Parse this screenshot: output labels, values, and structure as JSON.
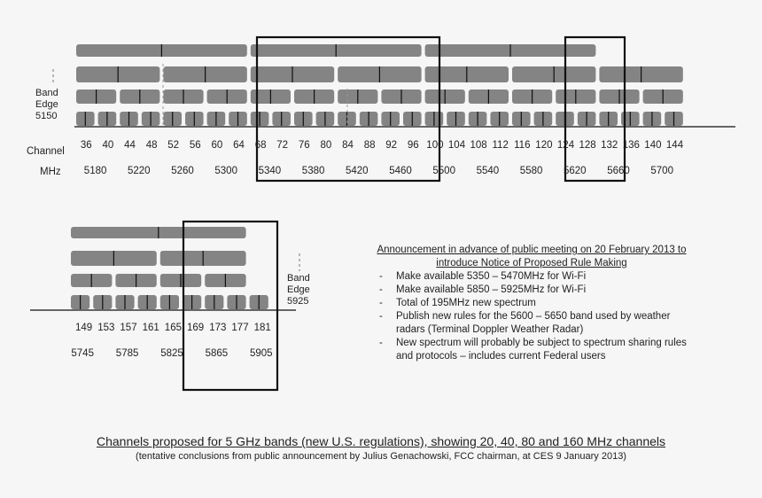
{
  "upper": {
    "band_edge_label": [
      "Band",
      "Edge",
      "5150"
    ],
    "channel_label": "Channel",
    "mhz_label": "MHz",
    "channels": [
      "36",
      "40",
      "44",
      "48",
      "52",
      "56",
      "60",
      "64",
      "68",
      "72",
      "76",
      "80",
      "84",
      "88",
      "92",
      "96",
      "100",
      "104",
      "108",
      "112",
      "116",
      "120",
      "124",
      "128",
      "132",
      "136",
      "140",
      "144"
    ],
    "mhz": [
      "5180",
      "5220",
      "5260",
      "5300",
      "5340",
      "5380",
      "5420",
      "5460",
      "5500",
      "5540",
      "5580",
      "5620",
      "5660",
      "5700"
    ]
  },
  "lower": {
    "band_edge_label": [
      "Band",
      "Edge",
      "5925"
    ],
    "channels": [
      "149",
      "153",
      "157",
      "161",
      "165",
      "169",
      "173",
      "177",
      "181"
    ],
    "mhz": [
      "5745",
      "5785",
      "5825",
      "5865",
      "5905"
    ]
  },
  "announcement": {
    "title": "Announcement in advance of public meeting on 20 February 2013 to introduce Notice of Proposed Rule Making",
    "items": [
      "Make available 5350 – 5470MHz for Wi-Fi",
      "Make available 5850 – 5925MHz for Wi-Fi",
      "Total of 195MHz new spectrum",
      "Publish new rules for the 5600 – 5650 band used by weather radars (Terminal Doppler Weather Radar)",
      "New spectrum will probably be subject to spectrum sharing rules and protocols – includes current Federal users"
    ]
  },
  "caption": {
    "title": "Channels proposed for 5 GHz  bands (new U.S. regulations), showing 20, 40, 80 and 160 MHz channels",
    "subtitle": "(tentative conclusions from public announcement by Julius Genachowski, FCC chairman, at CES 9 January 2013)"
  },
  "colors": {
    "bar": "#848484",
    "frame": "#111111",
    "text": "#222222",
    "background": "#f6f6f6"
  }
}
